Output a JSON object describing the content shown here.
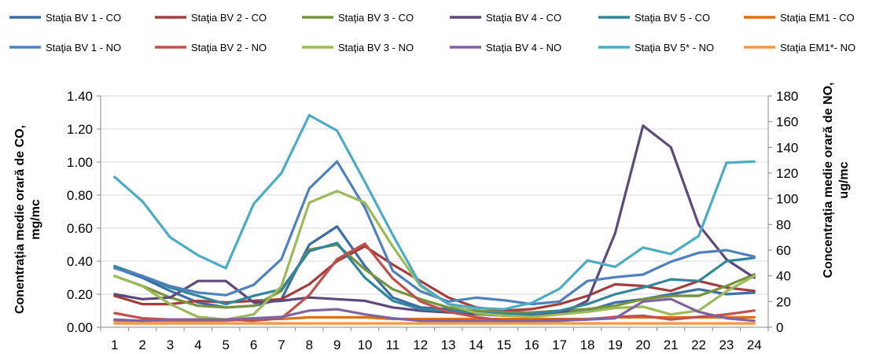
{
  "chart_data": {
    "type": "line",
    "categories": [
      "1",
      "2",
      "3",
      "4",
      "5",
      "6",
      "7",
      "8",
      "9",
      "10",
      "11",
      "12",
      "13",
      "14",
      "15",
      "16",
      "17",
      "18",
      "19",
      "20",
      "21",
      "22",
      "23",
      "24"
    ],
    "ylabel_left": "Conentrația medie orară de CO, mg/mc",
    "ylabel_left_lines": [
      "Conentrația medie orară de CO,",
      "mg/mc"
    ],
    "ylabel_right": "Concentrația medie orară de NO, ug/mc",
    "ylabel_right_lines": [
      "Concentrația medie orară de NO,",
      "ug/mc"
    ],
    "ylim_left": [
      0,
      1.4
    ],
    "ylim_right": [
      0,
      180
    ],
    "yticks_left": [
      "0.00",
      "0.20",
      "0.40",
      "0.60",
      "0.80",
      "1.00",
      "1.20",
      "1.40"
    ],
    "yticks_right": [
      "0",
      "20",
      "40",
      "60",
      "80",
      "100",
      "120",
      "140",
      "160",
      "180"
    ],
    "grid": true,
    "legend_position": "top",
    "series": [
      {
        "name": "Staţia BV 1 - CO",
        "axis": "left",
        "color": "#3a6ea5",
        "values": [
          0.36,
          0.3,
          0.22,
          0.15,
          0.12,
          0.13,
          0.17,
          0.5,
          0.61,
          0.37,
          0.18,
          0.12,
          0.11,
          0.09,
          0.08,
          0.08,
          0.09,
          0.1,
          0.15,
          0.17,
          0.2,
          0.23,
          0.2,
          0.21
        ]
      },
      {
        "name": "Staţia BV 2 - CO",
        "axis": "left",
        "color": "#a33e3c",
        "values": [
          0.19,
          0.14,
          0.14,
          0.16,
          0.15,
          0.16,
          0.17,
          0.26,
          0.4,
          0.49,
          0.38,
          0.28,
          0.18,
          0.12,
          0.1,
          0.11,
          0.14,
          0.19,
          0.26,
          0.25,
          0.22,
          0.28,
          0.24,
          0.22
        ]
      },
      {
        "name": "Staţia BV 3 - CO",
        "axis": "left",
        "color": "#77933c",
        "values": [
          0.31,
          0.25,
          0.18,
          0.13,
          0.12,
          0.13,
          0.22,
          0.47,
          0.5,
          0.35,
          0.23,
          0.17,
          0.12,
          0.1,
          0.09,
          0.09,
          0.1,
          0.11,
          0.13,
          0.17,
          0.19,
          0.19,
          0.25,
          0.32
        ]
      },
      {
        "name": "Staţia BV 4 - CO",
        "axis": "left",
        "color": "#5f497a",
        "values": [
          0.2,
          0.17,
          0.18,
          0.28,
          0.28,
          0.15,
          0.16,
          0.18,
          0.17,
          0.16,
          0.12,
          0.1,
          0.09,
          0.08,
          0.07,
          0.07,
          0.08,
          0.16,
          0.57,
          1.22,
          1.09,
          0.62,
          0.41,
          0.3
        ]
      },
      {
        "name": "Staţia BV 5 - CO",
        "axis": "left",
        "color": "#31859c",
        "values": [
          0.37,
          0.31,
          0.24,
          0.19,
          0.14,
          0.19,
          0.23,
          0.46,
          0.51,
          0.3,
          0.16,
          0.11,
          0.1,
          0.09,
          0.08,
          0.08,
          0.1,
          0.14,
          0.2,
          0.24,
          0.29,
          0.28,
          0.4,
          0.42
        ]
      },
      {
        "name": "Staţia EM1 - CO",
        "axis": "left",
        "color": "#e46c0a",
        "values": [
          0.04,
          0.04,
          0.04,
          0.04,
          0.04,
          0.05,
          0.05,
          0.06,
          0.06,
          0.06,
          0.05,
          0.05,
          0.05,
          0.05,
          0.05,
          0.05,
          0.05,
          0.05,
          0.06,
          0.06,
          0.06,
          0.06,
          0.06,
          0.06
        ]
      },
      {
        "name": "Staţia BV 1 - NO",
        "axis": "right",
        "color": "#4f81bd",
        "values": [
          46,
          40,
          32,
          27,
          25,
          33,
          53,
          108,
          129,
          93,
          44,
          28,
          20,
          23,
          21,
          18,
          20,
          36,
          39,
          41,
          51,
          58,
          60,
          55
        ]
      },
      {
        "name": "Staţia BV 2 - NO",
        "axis": "right",
        "color": "#c0504d",
        "values": [
          11,
          7,
          6,
          6,
          6,
          5,
          7,
          25,
          53,
          65,
          38,
          20,
          12,
          8,
          5,
          5,
          6,
          6,
          8,
          9,
          6,
          8,
          10,
          13
        ]
      },
      {
        "name": "Staţia BV 3 - NO",
        "axis": "right",
        "color": "#9bbb59",
        "values": [
          40,
          32,
          18,
          8,
          6,
          10,
          32,
          97,
          106,
          97,
          63,
          32,
          18,
          11,
          9,
          8,
          10,
          12,
          15,
          16,
          10,
          13,
          28,
          40
        ]
      },
      {
        "name": "Staţia BV 4 - NO",
        "axis": "right",
        "color": "#8064a2",
        "values": [
          6,
          5,
          6,
          6,
          6,
          7,
          8,
          13,
          14,
          10,
          7,
          5,
          5,
          5,
          5,
          5,
          5,
          6,
          7,
          20,
          22,
          12,
          7,
          5
        ]
      },
      {
        "name": "Staţia BV 5* - NO",
        "axis": "right",
        "color": "#4bacc6",
        "values": [
          117,
          98,
          70,
          56,
          46,
          96,
          120,
          165,
          153,
          113,
          72,
          33,
          18,
          15,
          14,
          19,
          30,
          52,
          47,
          62,
          57,
          71,
          128,
          129
        ]
      },
      {
        "name": "Staţia EM1*- NO",
        "axis": "right",
        "color": "#f79646",
        "values": [
          3,
          3,
          3,
          3,
          3,
          3,
          3,
          3,
          3,
          3,
          3,
          3,
          3,
          3,
          3,
          3,
          3,
          3,
          3,
          3,
          3,
          3,
          3,
          3
        ]
      }
    ]
  }
}
